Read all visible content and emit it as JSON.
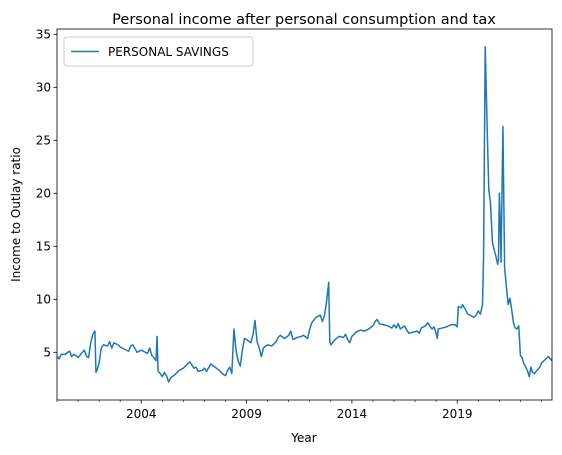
{
  "chart_data": {
    "type": "line",
    "title": "Personal income after personal consumption and tax",
    "xlabel": "Year",
    "ylabel": "Income to Outlay ratio",
    "xlim": [
      2000.0,
      2023.5
    ],
    "ylim": [
      0.5,
      35.5
    ],
    "x_ticks": [
      2004,
      2009,
      2014,
      2019
    ],
    "y_ticks": [
      5,
      10,
      15,
      20,
      25,
      30,
      35
    ],
    "grid": false,
    "legend_position": "top-left",
    "series": [
      {
        "name": "PERSONAL SAVINGS",
        "color": "#1f77b4",
        "points": [
          [
            2000.0,
            4.6
          ],
          [
            2000.1,
            4.4
          ],
          [
            2000.2,
            4.8
          ],
          [
            2000.4,
            4.8
          ],
          [
            2000.5,
            5.0
          ],
          [
            2000.6,
            5.1
          ],
          [
            2000.7,
            4.6
          ],
          [
            2000.8,
            4.8
          ],
          [
            2000.9,
            4.7
          ],
          [
            2001.0,
            4.5
          ],
          [
            2001.2,
            5.0
          ],
          [
            2001.3,
            5.2
          ],
          [
            2001.4,
            4.6
          ],
          [
            2001.5,
            4.5
          ],
          [
            2001.6,
            5.9
          ],
          [
            2001.7,
            6.7
          ],
          [
            2001.8,
            7.0
          ],
          [
            2001.85,
            3.1
          ],
          [
            2001.9,
            3.3
          ],
          [
            2002.0,
            4.0
          ],
          [
            2002.1,
            5.4
          ],
          [
            2002.2,
            5.7
          ],
          [
            2002.4,
            5.6
          ],
          [
            2002.5,
            6.0
          ],
          [
            2002.6,
            5.4
          ],
          [
            2002.7,
            5.9
          ],
          [
            2002.9,
            5.7
          ],
          [
            2003.0,
            5.5
          ],
          [
            2003.2,
            5.3
          ],
          [
            2003.4,
            5.1
          ],
          [
            2003.5,
            5.6
          ],
          [
            2003.6,
            5.7
          ],
          [
            2003.8,
            5.0
          ],
          [
            2004.0,
            5.2
          ],
          [
            2004.2,
            5.0
          ],
          [
            2004.3,
            4.9
          ],
          [
            2004.4,
            5.4
          ],
          [
            2004.5,
            4.7
          ],
          [
            2004.6,
            4.5
          ],
          [
            2004.7,
            4.2
          ],
          [
            2004.75,
            6.5
          ],
          [
            2004.8,
            3.2
          ],
          [
            2004.9,
            3.0
          ],
          [
            2005.0,
            2.7
          ],
          [
            2005.1,
            3.1
          ],
          [
            2005.2,
            2.8
          ],
          [
            2005.3,
            2.2
          ],
          [
            2005.4,
            2.6
          ],
          [
            2005.6,
            2.9
          ],
          [
            2005.8,
            3.3
          ],
          [
            2006.0,
            3.5
          ],
          [
            2006.2,
            3.9
          ],
          [
            2006.3,
            4.1
          ],
          [
            2006.4,
            3.8
          ],
          [
            2006.5,
            3.5
          ],
          [
            2006.6,
            3.6
          ],
          [
            2006.7,
            3.2
          ],
          [
            2006.9,
            3.3
          ],
          [
            2007.0,
            3.5
          ],
          [
            2007.1,
            3.2
          ],
          [
            2007.3,
            3.9
          ],
          [
            2007.5,
            3.6
          ],
          [
            2007.7,
            3.3
          ],
          [
            2007.9,
            2.9
          ],
          [
            2008.0,
            2.8
          ],
          [
            2008.1,
            3.3
          ],
          [
            2008.2,
            3.6
          ],
          [
            2008.3,
            3.0
          ],
          [
            2008.4,
            7.2
          ],
          [
            2008.5,
            5.2
          ],
          [
            2008.6,
            4.2
          ],
          [
            2008.7,
            3.7
          ],
          [
            2008.8,
            5.2
          ],
          [
            2008.9,
            6.3
          ],
          [
            2009.0,
            6.2
          ],
          [
            2009.2,
            5.9
          ],
          [
            2009.3,
            6.6
          ],
          [
            2009.4,
            8.0
          ],
          [
            2009.5,
            6.0
          ],
          [
            2009.6,
            5.4
          ],
          [
            2009.7,
            4.6
          ],
          [
            2009.8,
            5.4
          ],
          [
            2009.9,
            5.6
          ],
          [
            2010.0,
            5.7
          ],
          [
            2010.2,
            5.6
          ],
          [
            2010.4,
            6.0
          ],
          [
            2010.5,
            6.4
          ],
          [
            2010.6,
            6.6
          ],
          [
            2010.8,
            6.3
          ],
          [
            2011.0,
            6.6
          ],
          [
            2011.1,
            7.0
          ],
          [
            2011.2,
            6.2
          ],
          [
            2011.4,
            6.4
          ],
          [
            2011.6,
            6.5
          ],
          [
            2011.7,
            6.6
          ],
          [
            2011.9,
            6.3
          ],
          [
            2012.0,
            7.2
          ],
          [
            2012.1,
            7.8
          ],
          [
            2012.3,
            8.3
          ],
          [
            2012.5,
            8.5
          ],
          [
            2012.6,
            7.9
          ],
          [
            2012.7,
            8.5
          ],
          [
            2012.8,
            9.8
          ],
          [
            2012.9,
            11.6
          ],
          [
            2012.95,
            6.0
          ],
          [
            2013.0,
            5.7
          ],
          [
            2013.2,
            6.2
          ],
          [
            2013.4,
            6.5
          ],
          [
            2013.6,
            6.4
          ],
          [
            2013.7,
            6.7
          ],
          [
            2013.8,
            6.2
          ],
          [
            2013.9,
            5.9
          ],
          [
            2014.0,
            6.5
          ],
          [
            2014.2,
            6.9
          ],
          [
            2014.4,
            7.1
          ],
          [
            2014.6,
            7.0
          ],
          [
            2014.8,
            7.2
          ],
          [
            2015.0,
            7.5
          ],
          [
            2015.1,
            7.9
          ],
          [
            2015.2,
            8.1
          ],
          [
            2015.3,
            7.7
          ],
          [
            2015.5,
            7.6
          ],
          [
            2015.7,
            7.5
          ],
          [
            2015.9,
            7.3
          ],
          [
            2016.0,
            7.6
          ],
          [
            2016.1,
            7.3
          ],
          [
            2016.2,
            7.7
          ],
          [
            2016.3,
            7.2
          ],
          [
            2016.5,
            7.5
          ],
          [
            2016.6,
            7.1
          ],
          [
            2016.7,
            6.8
          ],
          [
            2016.9,
            6.9
          ],
          [
            2017.1,
            7.0
          ],
          [
            2017.2,
            6.8
          ],
          [
            2017.3,
            7.3
          ],
          [
            2017.5,
            7.5
          ],
          [
            2017.6,
            7.8
          ],
          [
            2017.7,
            7.5
          ],
          [
            2017.8,
            7.2
          ],
          [
            2017.9,
            7.4
          ],
          [
            2018.0,
            6.8
          ],
          [
            2018.05,
            6.3
          ],
          [
            2018.1,
            7.2
          ],
          [
            2018.3,
            7.3
          ],
          [
            2018.5,
            7.4
          ],
          [
            2018.7,
            7.6
          ],
          [
            2018.9,
            7.6
          ],
          [
            2019.0,
            7.4
          ],
          [
            2019.05,
            9.3
          ],
          [
            2019.2,
            9.2
          ],
          [
            2019.25,
            9.5
          ],
          [
            2019.4,
            9.0
          ],
          [
            2019.5,
            8.6
          ],
          [
            2019.7,
            8.4
          ],
          [
            2019.8,
            8.3
          ],
          [
            2019.9,
            8.5
          ],
          [
            2020.0,
            8.9
          ],
          [
            2020.1,
            8.6
          ],
          [
            2020.2,
            9.5
          ],
          [
            2020.25,
            13.7
          ],
          [
            2020.33,
            33.8
          ],
          [
            2020.42,
            26.3
          ],
          [
            2020.5,
            20.3
          ],
          [
            2020.58,
            19.1
          ],
          [
            2020.67,
            15.4
          ],
          [
            2020.75,
            14.7
          ],
          [
            2020.83,
            14.1
          ],
          [
            2020.92,
            13.3
          ],
          [
            2020.96,
            13.8
          ],
          [
            2021.0,
            20.0
          ],
          [
            2021.04,
            17.5
          ],
          [
            2021.08,
            13.5
          ],
          [
            2021.17,
            26.3
          ],
          [
            2021.25,
            13.0
          ],
          [
            2021.33,
            11.3
          ],
          [
            2021.42,
            9.5
          ],
          [
            2021.5,
            10.1
          ],
          [
            2021.58,
            9.1
          ],
          [
            2021.67,
            7.8
          ],
          [
            2021.75,
            7.3
          ],
          [
            2021.83,
            7.2
          ],
          [
            2021.92,
            7.5
          ],
          [
            2022.0,
            4.7
          ],
          [
            2022.08,
            4.5
          ],
          [
            2022.17,
            3.9
          ],
          [
            2022.25,
            3.6
          ],
          [
            2022.33,
            3.3
          ],
          [
            2022.42,
            2.7
          ],
          [
            2022.5,
            3.6
          ],
          [
            2022.58,
            3.1
          ],
          [
            2022.67,
            3.0
          ],
          [
            2022.75,
            3.2
          ],
          [
            2022.83,
            3.4
          ],
          [
            2022.92,
            3.6
          ],
          [
            2023.0,
            4.0
          ],
          [
            2023.17,
            4.3
          ],
          [
            2023.33,
            4.6
          ],
          [
            2023.5,
            4.2
          ]
        ]
      }
    ]
  }
}
